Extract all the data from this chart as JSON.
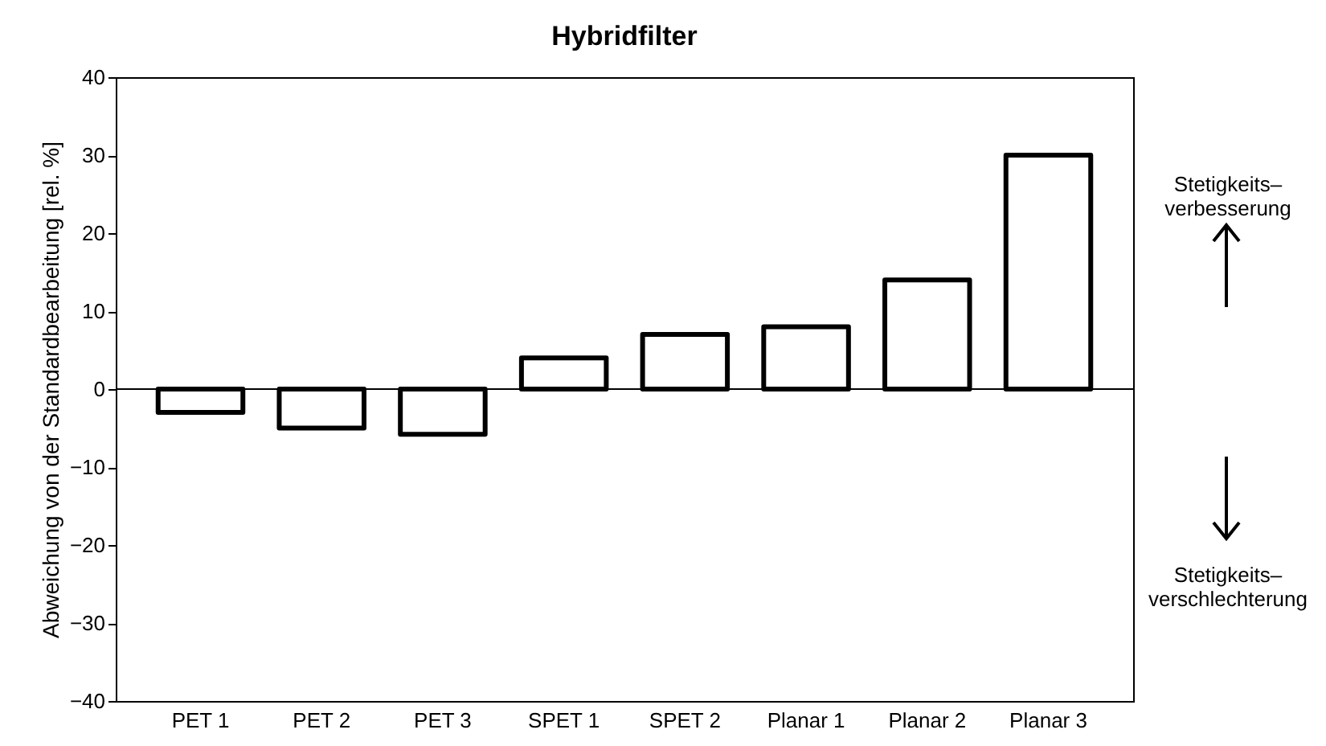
{
  "chart_data": {
    "type": "bar",
    "title": "Hybridfilter",
    "ylabel": "Abweichung von der Standardbearbeitung [rel. %]",
    "categories": [
      "PET 1",
      "PET 2",
      "PET 3",
      "SPET 1",
      "SPET 2",
      "Planar 1",
      "Planar 2",
      "Planar 3"
    ],
    "values": [
      -3,
      -5,
      -5.8,
      4,
      7,
      8,
      14,
      30
    ],
    "color": "#000000",
    "ylim": [
      -40,
      40
    ],
    "yticks": [
      -40,
      -30,
      -20,
      -10,
      0,
      10,
      20,
      30,
      40
    ],
    "grid": false,
    "ref_lines": [
      {
        "axis": "y",
        "value": 0,
        "color": "#000000"
      }
    ],
    "annotations": [
      "Stetigkeits–\nverbesserung",
      "Stetigkeits–\nverschlechterung"
    ]
  }
}
